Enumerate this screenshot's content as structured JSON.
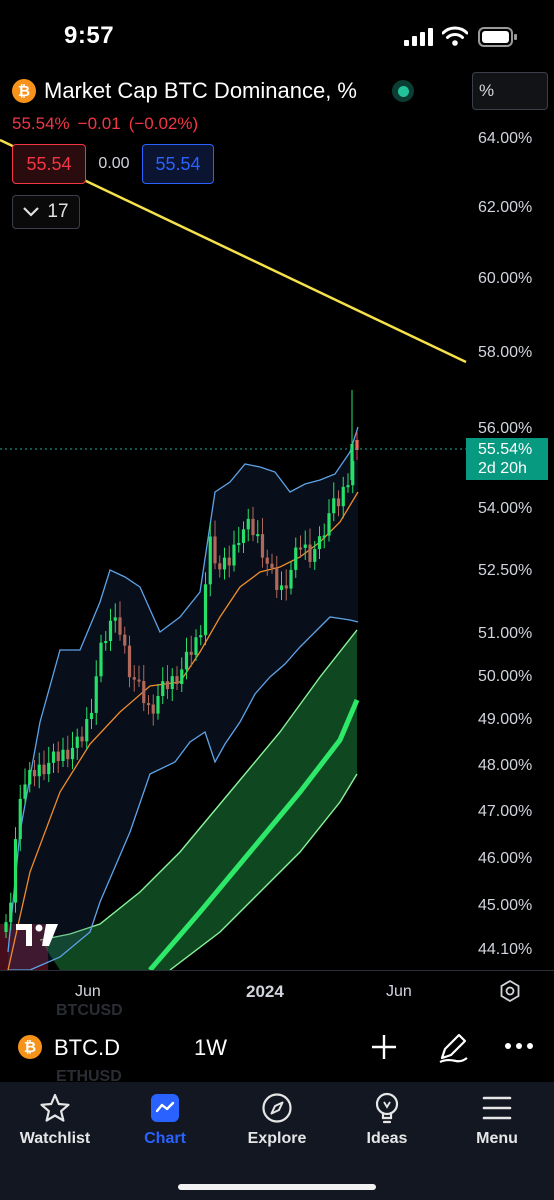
{
  "status_bar": {
    "time": "9:57"
  },
  "header": {
    "symbol_icon": "bitcoin-icon",
    "title": "Market Cap BTC Dominance, %",
    "unit": "%",
    "last": "55.54%",
    "change": "−0.01",
    "change_pct": "(−0.02%)",
    "bid": "55.54",
    "spread": "0.00",
    "ask": "55.54",
    "indicator_count": "17"
  },
  "price_axis": {
    "ticks": [
      "64.00%",
      "62.00%",
      "60.00%",
      "58.00%",
      "56.00%",
      "54.00%",
      "52.50%",
      "51.00%",
      "50.00%",
      "49.00%",
      "48.00%",
      "47.00%",
      "46.00%",
      "45.00%",
      "44.10%"
    ],
    "current_price": "55.54%",
    "countdown": "2d 20h"
  },
  "time_axis": {
    "labels": [
      "Jun",
      "2024",
      "Jun"
    ]
  },
  "toolbar": {
    "ghost_top": "BTCUSD",
    "ghost_bottom": "ETHUSD",
    "symbol": "BTC.D",
    "interval": "1W"
  },
  "nav": {
    "items": [
      {
        "label": "Watchlist",
        "icon": "star-icon"
      },
      {
        "label": "Chart",
        "icon": "chart-icon"
      },
      {
        "label": "Explore",
        "icon": "compass-icon"
      },
      {
        "label": "Ideas",
        "icon": "lightbulb-icon"
      },
      {
        "label": "Menu",
        "icon": "menu-icon"
      }
    ],
    "active": "Chart"
  },
  "colors": {
    "up": "#22ab94",
    "down": "#f23645",
    "candle_up": "#26e06a",
    "candle_down": "#b0685a",
    "bollinger": "#5da3e8",
    "ma": "#f08c2c",
    "trendline": "#f5e14a",
    "channel": "#2ee86a",
    "accent": "#2962ff"
  }
}
